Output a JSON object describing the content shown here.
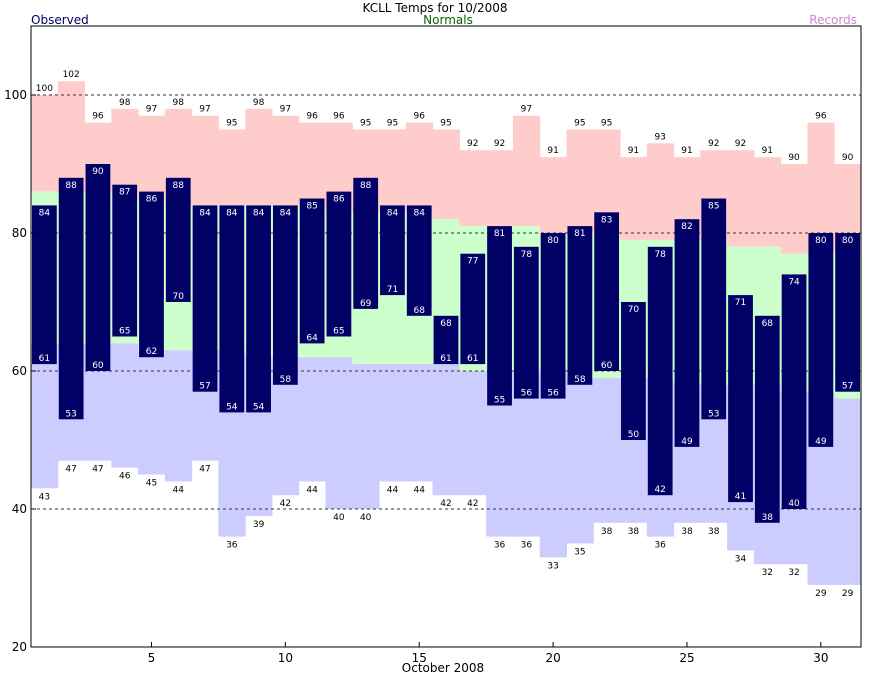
{
  "header": {
    "title": "KCLL Temps for 10/2008",
    "observed_legend": "Observed",
    "normals_legend": "Normals",
    "records_legend": "Records"
  },
  "colors": {
    "observed_bar": "#000066",
    "normals_band": "#ccffcc",
    "record_high_band": "#ffcccc",
    "record_low_band": "#ccccff",
    "observed_legend": "#000066",
    "normals_legend": "#006600",
    "records_legend": "#cc88cc"
  },
  "chart_data": {
    "type": "bar",
    "title": "KCLL Temps for 10/2008",
    "xlabel": "October 2008",
    "ylabel": "",
    "xlim": [
      1,
      31
    ],
    "ylim": [
      20,
      110
    ],
    "x_ticks": [
      5,
      10,
      15,
      20,
      25,
      30
    ],
    "y_ticks": [
      20,
      40,
      60,
      80,
      100
    ],
    "gridlines_y": [
      40,
      60,
      80,
      100
    ],
    "grid_style": "dashed",
    "days": [
      1,
      2,
      3,
      4,
      5,
      6,
      7,
      8,
      9,
      10,
      11,
      12,
      13,
      14,
      15,
      16,
      17,
      18,
      19,
      20,
      21,
      22,
      23,
      24,
      25,
      26,
      27,
      28,
      29,
      30,
      31
    ],
    "series": [
      {
        "name": "Records",
        "key": "record_high",
        "values": [
          100,
          102,
          96,
          98,
          97,
          98,
          97,
          95,
          98,
          97,
          96,
          96,
          95,
          95,
          96,
          95,
          92,
          92,
          97,
          91,
          95,
          95,
          91,
          93,
          91,
          92,
          92,
          91,
          90,
          96,
          90
        ]
      },
      {
        "name": "Normals",
        "key": "normal_high",
        "values": [
          86,
          86,
          86,
          85,
          85,
          84,
          84,
          84,
          84,
          84,
          84,
          83,
          83,
          83,
          83,
          82,
          81,
          81,
          81,
          80,
          80,
          80,
          79,
          79,
          79,
          79,
          78,
          78,
          77,
          77,
          77
        ]
      },
      {
        "name": "Normals",
        "key": "normal_low",
        "values": [
          64,
          64,
          64,
          64,
          63,
          63,
          63,
          63,
          62,
          62,
          62,
          62,
          61,
          61,
          61,
          61,
          60,
          60,
          60,
          60,
          59,
          59,
          59,
          59,
          58,
          58,
          58,
          58,
          57,
          57,
          56
        ]
      },
      {
        "name": "Records",
        "key": "record_low",
        "values": [
          43,
          47,
          47,
          46,
          45,
          44,
          47,
          36,
          39,
          42,
          44,
          40,
          40,
          44,
          44,
          42,
          42,
          36,
          36,
          33,
          35,
          38,
          38,
          36,
          38,
          38,
          34,
          32,
          32,
          29,
          29
        ]
      },
      {
        "name": "Observed",
        "key": "observed_high",
        "values": [
          84,
          88,
          90,
          87,
          86,
          88,
          84,
          84,
          84,
          84,
          85,
          86,
          88,
          84,
          84,
          68,
          77,
          81,
          78,
          80,
          81,
          83,
          70,
          78,
          82,
          85,
          71,
          68,
          74,
          80,
          80
        ]
      },
      {
        "name": "Observed",
        "key": "observed_low",
        "values": [
          61,
          53,
          60,
          65,
          62,
          70,
          57,
          54,
          54,
          58,
          64,
          65,
          69,
          71,
          68,
          61,
          61,
          55,
          56,
          56,
          58,
          60,
          50,
          42,
          49,
          53,
          41,
          38,
          40,
          49,
          57
        ]
      }
    ],
    "labels_shown": {
      "record_high": true,
      "record_low": true,
      "observed_high": true,
      "observed_low": [
        true,
        true,
        true,
        true,
        true,
        true,
        true,
        true,
        true,
        true,
        true,
        true,
        true,
        true,
        true,
        true,
        true,
        true,
        true,
        true,
        true,
        true,
        true,
        true,
        true,
        true,
        true,
        true,
        true,
        true,
        true
      ]
    }
  }
}
